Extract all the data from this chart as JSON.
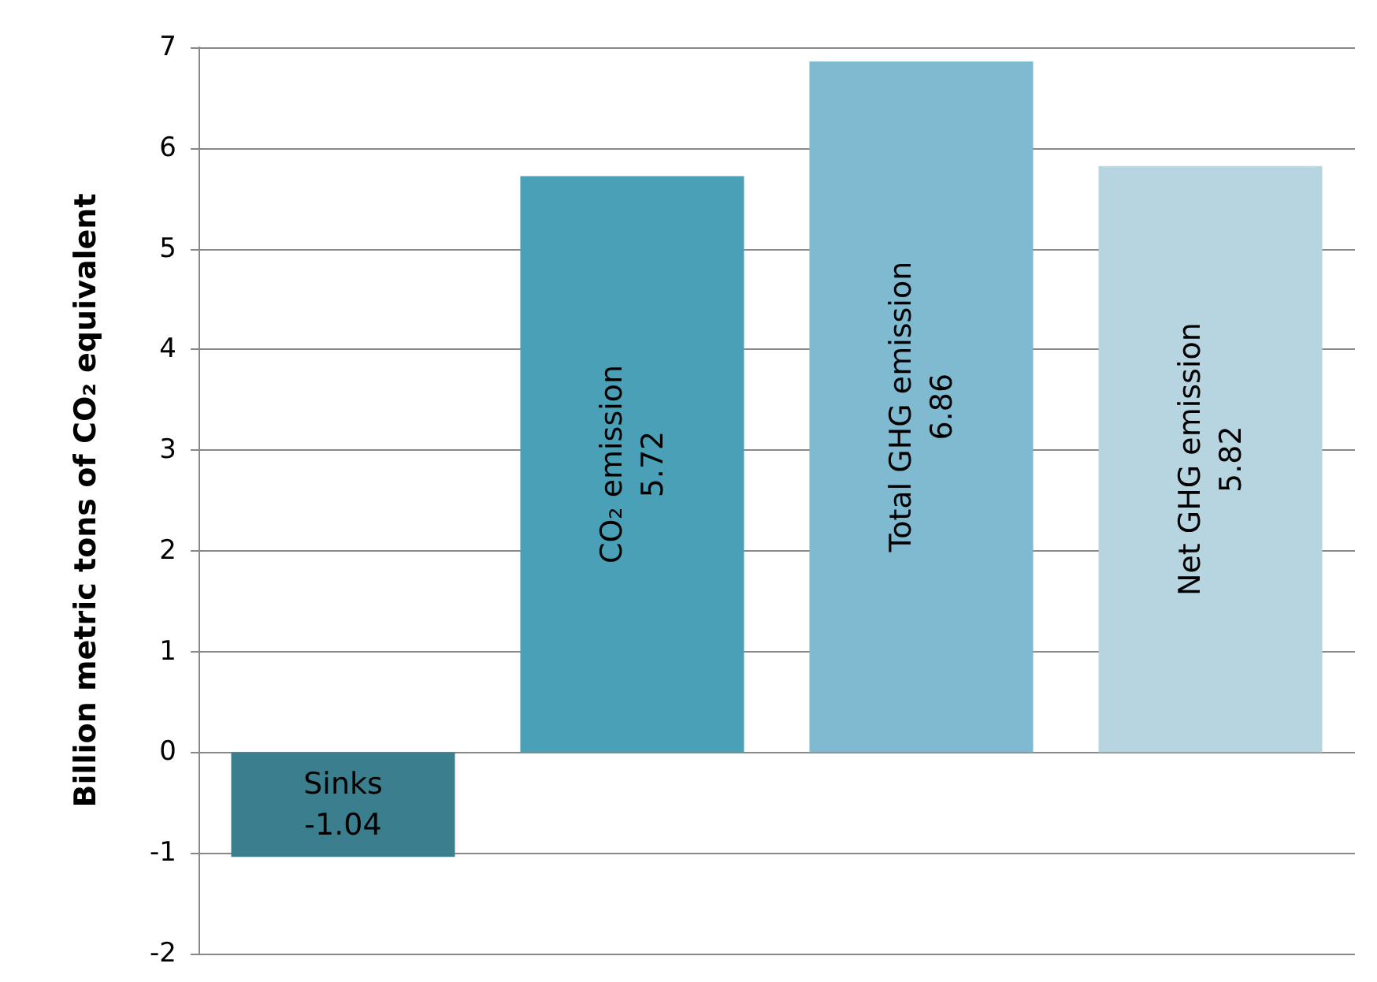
{
  "chart_data": {
    "type": "bar",
    "ylabel": "Billion metric tons of CO₂ equivalent",
    "categories": [
      "Sinks",
      "CO₂ emission",
      "Total GHG emission",
      "Net GHG emission"
    ],
    "values": [
      -1.04,
      5.72,
      6.86,
      5.82
    ],
    "colors": [
      "#3b7f8f",
      "#4aa0b6",
      "#7fbad0",
      "#b6d5e0"
    ],
    "ylim": [
      -2,
      7
    ],
    "yticks": [
      -2,
      -1,
      0,
      1,
      2,
      3,
      4,
      5,
      6,
      7
    ],
    "grid": "y",
    "tick_labels": "y",
    "data_labels": true
  }
}
